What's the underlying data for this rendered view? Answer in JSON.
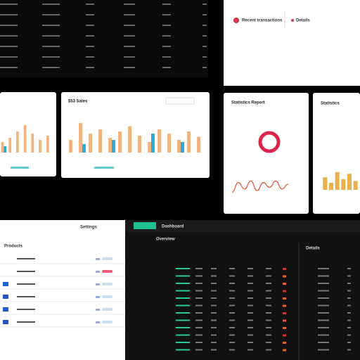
{
  "panels": {
    "top_right": {
      "title": "Recent transactions",
      "action": "Details"
    },
    "sales_card": {
      "title": "$53 Sales"
    },
    "report_card": {
      "title": "Statistics Report"
    },
    "stats_card": {
      "title": "Statistics"
    },
    "settings": {
      "title": "Settings",
      "section": "Products"
    },
    "dashboard": {
      "tab": "Dashboard",
      "title": "Overview",
      "side_title": "Details"
    }
  },
  "charts": [
    {
      "type": "bar",
      "ylim": [
        0,
        30
      ],
      "series": [
        {
          "color": "#f2b47e",
          "values": [
            10,
            14,
            20,
            26,
            18,
            12,
            16
          ]
        },
        {
          "color": "#2ea9d6",
          "values": [
            6,
            null,
            null,
            null,
            null,
            null,
            null
          ]
        }
      ]
    },
    {
      "type": "bar",
      "ylim": [
        0,
        30
      ],
      "series": [
        {
          "color": "#f2b47e",
          "values": [
            12,
            28,
            18,
            22,
            14,
            20,
            25,
            16,
            10,
            22,
            18,
            12,
            20,
            15
          ]
        },
        {
          "color": "#2ea9d6",
          "values": [
            null,
            8,
            null,
            null,
            12,
            null,
            null,
            null,
            18,
            null,
            null,
            10,
            null,
            null
          ]
        }
      ]
    },
    {
      "type": "bar",
      "ylim": [
        0,
        30
      ],
      "series": [
        {
          "color": "#e8b14a",
          "values": [
            14,
            8,
            20,
            12,
            18,
            10
          ]
        }
      ]
    },
    {
      "type": "line",
      "ylim": [
        0,
        10
      ],
      "color": "#e8553b",
      "values": [
        2,
        8,
        4,
        9,
        3,
        8,
        5,
        9,
        4,
        7
      ]
    }
  ]
}
